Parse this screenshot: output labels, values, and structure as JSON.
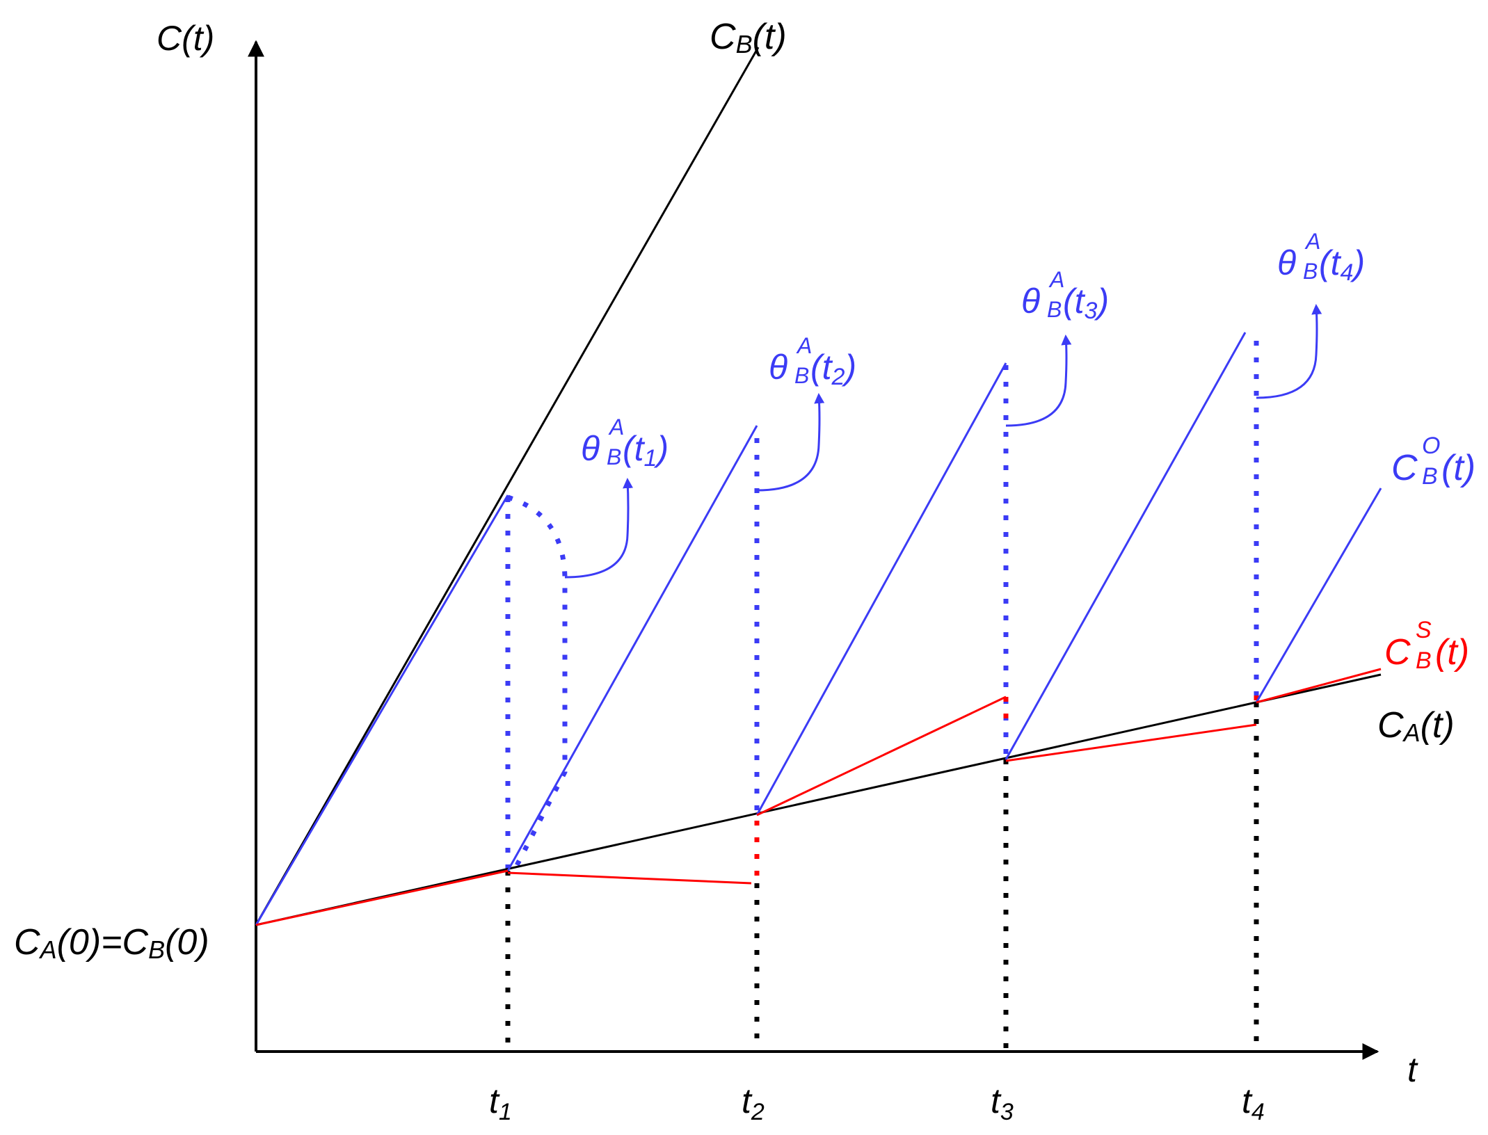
{
  "axes": {
    "y_label": "C(t)",
    "x_label": "t"
  },
  "ticks": [
    {
      "main": "t",
      "sub": "1"
    },
    {
      "main": "t",
      "sub": "2"
    },
    {
      "main": "t",
      "sub": "3"
    },
    {
      "main": "t",
      "sub": "4"
    }
  ],
  "origin_label": {
    "a_main": "C",
    "a_sub": "A",
    "a_arg": "(0)",
    "eq": "=",
    "b_main": "C",
    "b_sub": "B",
    "b_arg": "(0)"
  },
  "curve_labels": {
    "cb": {
      "main": "C",
      "sub": "B",
      "arg": "(t)"
    },
    "ca": {
      "main": "C",
      "sub": "A",
      "arg": "(t)"
    },
    "cbo": {
      "main": "C",
      "sup": "O",
      "sub": "B",
      "arg": "(t)"
    },
    "cbs": {
      "main": "C",
      "sup": "S",
      "sub": "B",
      "arg": "(t)"
    }
  },
  "theta_labels": [
    {
      "main": "θ",
      "sup": "A",
      "sub": "B",
      "arg_open": "(t",
      "arg_sub": "1",
      "arg_close": ")"
    },
    {
      "main": "θ",
      "sup": "A",
      "sub": "B",
      "arg_open": "(t",
      "arg_sub": "2",
      "arg_close": ")"
    },
    {
      "main": "θ",
      "sup": "A",
      "sub": "B",
      "arg_open": "(t",
      "arg_sub": "3",
      "arg_close": ")"
    },
    {
      "main": "θ",
      "sup": "A",
      "sub": "B",
      "arg_open": "(t",
      "arg_sub": "4",
      "arg_close": ")"
    }
  ],
  "colors": {
    "axis": "#000000",
    "clock_a": "#000000",
    "clock_b": "#000000",
    "clock_b_observed": "#3b3bf5",
    "clock_b_synced": "#ff0000"
  }
}
